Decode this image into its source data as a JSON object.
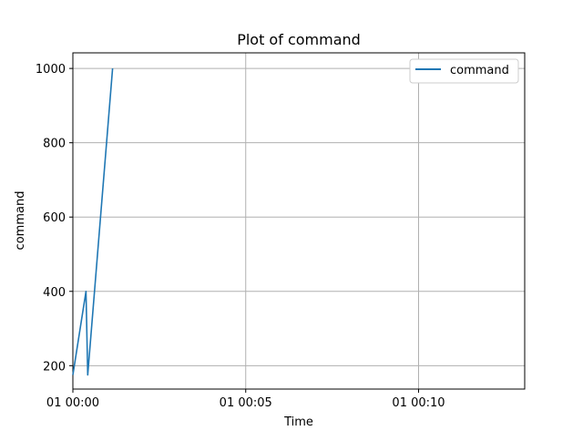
{
  "chart_data": {
    "type": "line",
    "title": "Plot of command",
    "xlabel": "Time",
    "ylabel": "command",
    "grid": true,
    "legend_position": "top-right",
    "x_ticks": [
      "01 00:00",
      "01 00:05",
      "01 00:10"
    ],
    "y_ticks": [
      "200",
      "400",
      "600",
      "800",
      "1000"
    ],
    "x_tick_values_min": [
      0,
      5,
      10
    ],
    "xlim_min": [
      0,
      13.07
    ],
    "ylim": [
      137,
      1042
    ],
    "series": [
      {
        "name": "command",
        "color": "#1f77b4",
        "x_min": [
          0.0,
          0.38,
          0.43,
          1.15
        ],
        "y": [
          175,
          400,
          175,
          1000
        ]
      }
    ]
  }
}
